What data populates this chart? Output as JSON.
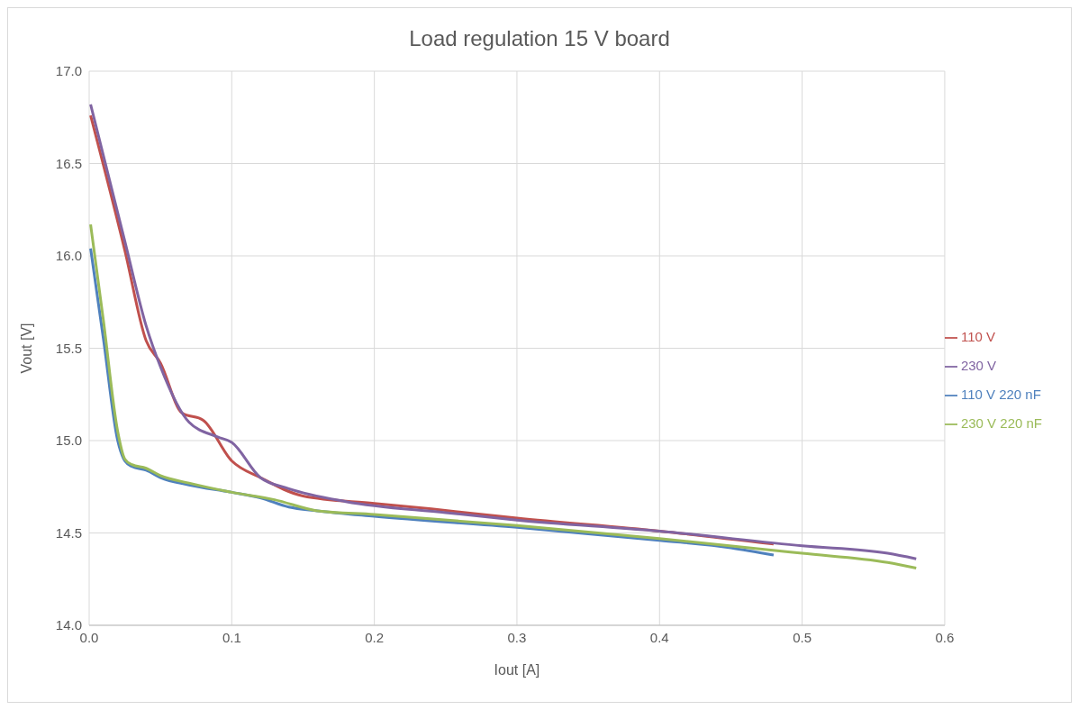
{
  "chart_data": {
    "type": "line",
    "title": "Load regulation 15 V board",
    "xlabel": "Iout [A]",
    "ylabel": "Vout [V]",
    "xlim": [
      0,
      0.6
    ],
    "xticks": [
      {
        "value": 0,
        "label": "0.0"
      },
      0.1,
      0.2,
      0.3,
      0.4,
      0.5,
      0.6
    ],
    "ylim": [
      14,
      17
    ],
    "yticks": [
      {
        "value": 14,
        "label": "14.0"
      },
      14.5,
      {
        "value": 15,
        "label": "15.0"
      },
      15.5,
      {
        "value": 16,
        "label": "16.0"
      },
      16.5,
      {
        "value": 17,
        "label": "17.0"
      }
    ],
    "grid": true,
    "legend": "right",
    "marker": "none",
    "line_style": "solid",
    "series": [
      {
        "name": "110 V",
        "color": "#c0504d",
        "x": [
          0.001,
          0.025,
          0.04,
          0.05,
          0.065,
          0.08,
          0.1,
          0.12,
          0.15,
          0.2,
          0.24,
          0.3,
          0.4,
          0.48
        ],
        "values": [
          16.76,
          16.03,
          15.54,
          15.42,
          15.15,
          15.11,
          14.89,
          14.8,
          14.7,
          14.66,
          14.63,
          14.58,
          14.51,
          14.44
        ]
      },
      {
        "name": "230 V",
        "color": "#8064a2",
        "x": [
          0.001,
          0.025,
          0.04,
          0.05,
          0.07,
          0.09,
          0.1,
          0.12,
          0.14,
          0.18,
          0.25,
          0.3,
          0.4,
          0.5,
          0.56,
          0.58
        ],
        "values": [
          16.82,
          16.08,
          15.62,
          15.4,
          15.1,
          15.02,
          14.99,
          14.8,
          14.74,
          14.67,
          14.61,
          14.57,
          14.51,
          14.43,
          14.39,
          14.36
        ]
      },
      {
        "name": "110 V 220 nF",
        "color": "#4f81bd",
        "x": [
          0.001,
          0.01,
          0.02,
          0.025,
          0.03,
          0.04,
          0.05,
          0.07,
          0.1,
          0.12,
          0.14,
          0.16,
          0.2,
          0.3,
          0.4,
          0.45,
          0.48
        ],
        "values": [
          16.04,
          15.55,
          15.0,
          14.89,
          14.86,
          14.84,
          14.8,
          14.76,
          14.72,
          14.69,
          14.64,
          14.62,
          14.59,
          14.53,
          14.46,
          14.42,
          14.38
        ]
      },
      {
        "name": "230 V 220 nF",
        "color": "#9bbb59",
        "x": [
          0.001,
          0.01,
          0.02,
          0.025,
          0.03,
          0.04,
          0.05,
          0.07,
          0.1,
          0.13,
          0.16,
          0.2,
          0.3,
          0.4,
          0.5,
          0.56,
          0.58
        ],
        "values": [
          16.17,
          15.65,
          15.05,
          14.9,
          14.87,
          14.85,
          14.81,
          14.77,
          14.72,
          14.68,
          14.62,
          14.6,
          14.54,
          14.47,
          14.39,
          14.34,
          14.31
        ]
      }
    ]
  }
}
